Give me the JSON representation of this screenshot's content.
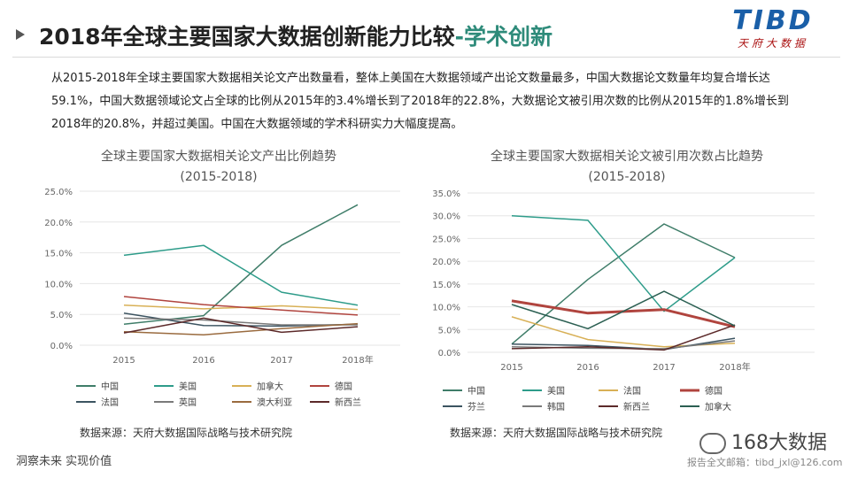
{
  "header": {
    "title_main": "2018年全球主要国家大数据创新能力比较",
    "title_highlight": "-学术创新",
    "logo_text": "TIBD",
    "logo_sub": "天府大数据"
  },
  "intro": "从2015-2018年全球主要国家大数据相关论文产出数量看，整体上美国在大数据领域产出论文数量最多，中国大数据论文数量年均复合增长达59.1%，中国大数据领域论文占全球的比例从2015年的3.4%增长到了2018年的22.8%，大数据论文被引用次数的比例从2015年的1.8%增长到2018年的20.8%，并超过美国。中国在大数据领域的学术科研实力大幅度提高。",
  "footer": {
    "slogan": "洞察未来 实现价值",
    "watermark": "168大数据",
    "email": "报告全文邮箱：tibd_jxl@126.com"
  },
  "chart_data": [
    {
      "type": "line",
      "title": "全球主要国家大数据相关论文产出比例趋势",
      "subtitle": "(2015-2018)",
      "categories": [
        "2015",
        "2016",
        "2017",
        "2018年"
      ],
      "ylim": [
        0,
        25
      ],
      "yticks": [
        "0.0%",
        "5.0%",
        "10.0%",
        "15.0%",
        "20.0%",
        "25.0%"
      ],
      "grid": true,
      "legend_position": "bottom",
      "source": "数据来源：天府大数据国际战略与技术研究院",
      "series": [
        {
          "name": "中国",
          "color": "#3f7d69",
          "width": 1.5,
          "values": [
            3.4,
            4.8,
            16.2,
            22.8
          ]
        },
        {
          "name": "美国",
          "color": "#2e9c8a",
          "width": 1.5,
          "values": [
            14.6,
            16.2,
            8.6,
            6.5
          ]
        },
        {
          "name": "加拿大",
          "color": "#d8b056",
          "width": 1.5,
          "values": [
            6.5,
            5.9,
            6.4,
            5.8
          ]
        },
        {
          "name": "德国",
          "color": "#b0443e",
          "width": 1.5,
          "values": [
            7.9,
            6.6,
            5.7,
            4.9
          ]
        },
        {
          "name": "法国",
          "color": "#3c5461",
          "width": 1.5,
          "values": [
            5.2,
            3.2,
            3.1,
            3.4
          ]
        },
        {
          "name": "英国",
          "color": "#7a7a7a",
          "width": 1.5,
          "values": [
            4.4,
            4.1,
            3.3,
            3.3
          ]
        },
        {
          "name": "澳大利亚",
          "color": "#9a6b3f",
          "width": 1.5,
          "values": [
            2.2,
            1.7,
            2.7,
            3.5
          ]
        },
        {
          "name": "新西兰",
          "color": "#5c2a2a",
          "width": 1.5,
          "values": [
            2.0,
            4.4,
            2.1,
            3.0
          ]
        }
      ]
    },
    {
      "type": "line",
      "title": "全球主要国家大数据相关论文被引用次数占比趋势",
      "subtitle": "(2015-2018)",
      "categories": [
        "2015",
        "2016",
        "2017",
        "2018年"
      ],
      "ylim": [
        0,
        35
      ],
      "yticks": [
        "0.0%",
        "5.0%",
        "10.0%",
        "15.0%",
        "20.0%",
        "25.0%",
        "30.0%",
        "35.0%"
      ],
      "grid": true,
      "legend_position": "bottom",
      "source": "数据来源：天府大数据国际战略与技术研究院",
      "series": [
        {
          "name": "中国",
          "color": "#3f7d69",
          "width": 1.5,
          "values": [
            1.8,
            16.0,
            28.2,
            20.8
          ]
        },
        {
          "name": "美国",
          "color": "#2e9c8a",
          "width": 1.5,
          "values": [
            30.0,
            29.0,
            9.0,
            20.8
          ]
        },
        {
          "name": "法国",
          "color": "#d8b056",
          "width": 1.5,
          "values": [
            7.8,
            2.8,
            1.2,
            2.0
          ]
        },
        {
          "name": "德国",
          "color": "#b0443e",
          "width": 3,
          "values": [
            11.3,
            8.6,
            9.4,
            5.6
          ]
        },
        {
          "name": "芬兰",
          "color": "#3c5461",
          "width": 1.5,
          "values": [
            1.8,
            1.5,
            0.6,
            3.1
          ]
        },
        {
          "name": "韩国",
          "color": "#7a7a7a",
          "width": 1.5,
          "values": [
            1.2,
            0.9,
            0.8,
            2.5
          ]
        },
        {
          "name": "新西兰",
          "color": "#5c2a2a",
          "width": 1.5,
          "values": [
            0.8,
            1.2,
            0.5,
            6.0
          ]
        },
        {
          "name": "加拿大",
          "color": "#2b5f52",
          "width": 1.5,
          "values": [
            10.5,
            5.2,
            13.4,
            5.8
          ]
        }
      ]
    }
  ]
}
